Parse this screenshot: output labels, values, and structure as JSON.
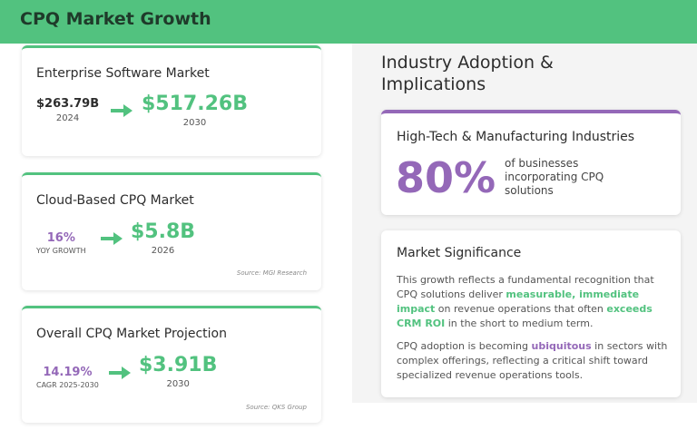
{
  "header": {
    "title": "CPQ Market Growth"
  },
  "cards": [
    {
      "title": "Enterprise Software Market",
      "from_value": "$263.79B",
      "from_label": "2024",
      "to_value": "$517.26B",
      "to_label": "2030"
    },
    {
      "title": "Cloud-Based CPQ Market",
      "from_value": "16%",
      "from_label": "YOY GROWTH",
      "to_value": "$5.8B",
      "to_label": "2026",
      "source": "Source: MGI Research"
    },
    {
      "title": "Overall CPQ Market Projection",
      "from_value": "14.19%",
      "from_label": "CAGR 2025-2030",
      "to_value": "$3.91B",
      "to_label": "2030",
      "source": "Source: QKS Group"
    }
  ],
  "right": {
    "title": "Industry Adoption & Implications",
    "adoption": {
      "title": "High-Tech & Manufacturing Industries",
      "stat": "80%",
      "description": "of businesses incorporating CPQ solutions"
    },
    "significance": {
      "title": "Market Significance",
      "paragraphs": [
        [
          "This growth reflects a fundamental recognition that CPQ solutions deliver ",
          "measurable, immediate impact",
          " on revenue operations that often ",
          "exceeds CRM ROI",
          " in the short to medium term."
        ],
        [
          "CPQ adoption is becoming ",
          "ubiquitous",
          " in sectors with complex offerings, reflecting a critical shift toward specialized revenue operations tools."
        ]
      ]
    }
  }
}
